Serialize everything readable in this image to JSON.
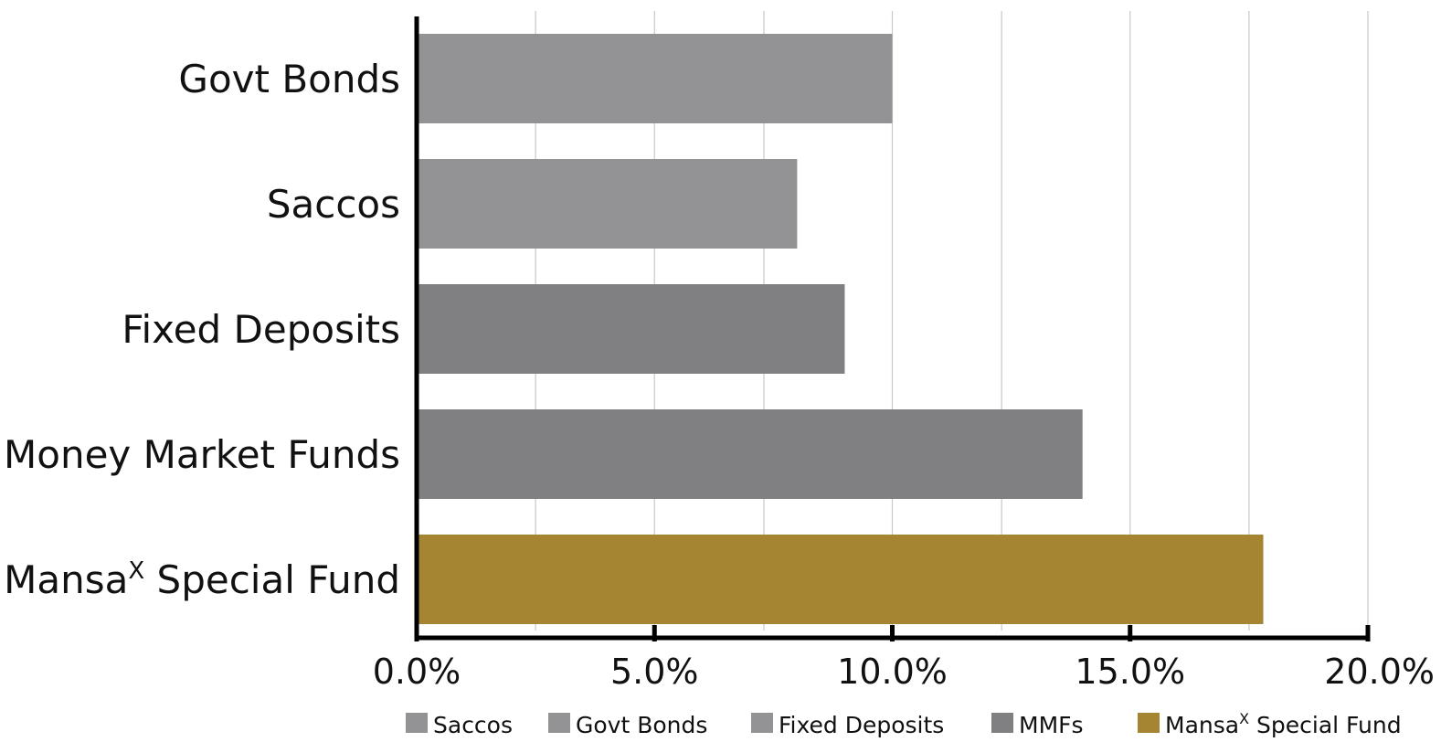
{
  "chart_data": {
    "type": "bar",
    "orientation": "horizontal",
    "categories": [
      {
        "name": "Govt Bonds"
      },
      {
        "name": "Saccos"
      },
      {
        "name": "Fixed Deposits"
      },
      {
        "name": "Money Market Funds"
      },
      {
        "name": "Mansa",
        "sup": "X",
        "rest": " Special Fund"
      }
    ],
    "values": [
      10.0,
      8.0,
      9.0,
      14.0,
      17.8
    ],
    "bar_colors": [
      "#939396",
      "#939396",
      "#808083",
      "#808083",
      "#a58532"
    ],
    "xlim": [
      0,
      20
    ],
    "x_ticks": [
      {
        "value": 0,
        "label": "0.0%"
      },
      {
        "value": 5,
        "label": "5.0%"
      },
      {
        "value": 10,
        "label": "10.0%"
      },
      {
        "value": 15,
        "label": "15.0%"
      },
      {
        "value": 20,
        "label": "20.0%"
      }
    ],
    "gridlines": [
      0,
      2.5,
      5,
      7.3,
      10,
      12.3,
      15,
      17.5,
      20
    ],
    "grid": true,
    "title": "",
    "xlabel": "",
    "ylabel": "",
    "legend": {
      "placement": "bottom",
      "entries": [
        {
          "name": "Saccos",
          "color": "#939396"
        },
        {
          "name": "Govt Bonds",
          "color": "#939396"
        },
        {
          "name": "Fixed Deposits",
          "color": "#939396"
        },
        {
          "name": "MMFs",
          "color": "#808083"
        },
        {
          "name": "Mansa",
          "sup": "X",
          "rest": " Special Fund",
          "color": "#a58532"
        }
      ]
    },
    "colors": {
      "axis": "#000000",
      "gridline": "#c8c8c8"
    }
  }
}
